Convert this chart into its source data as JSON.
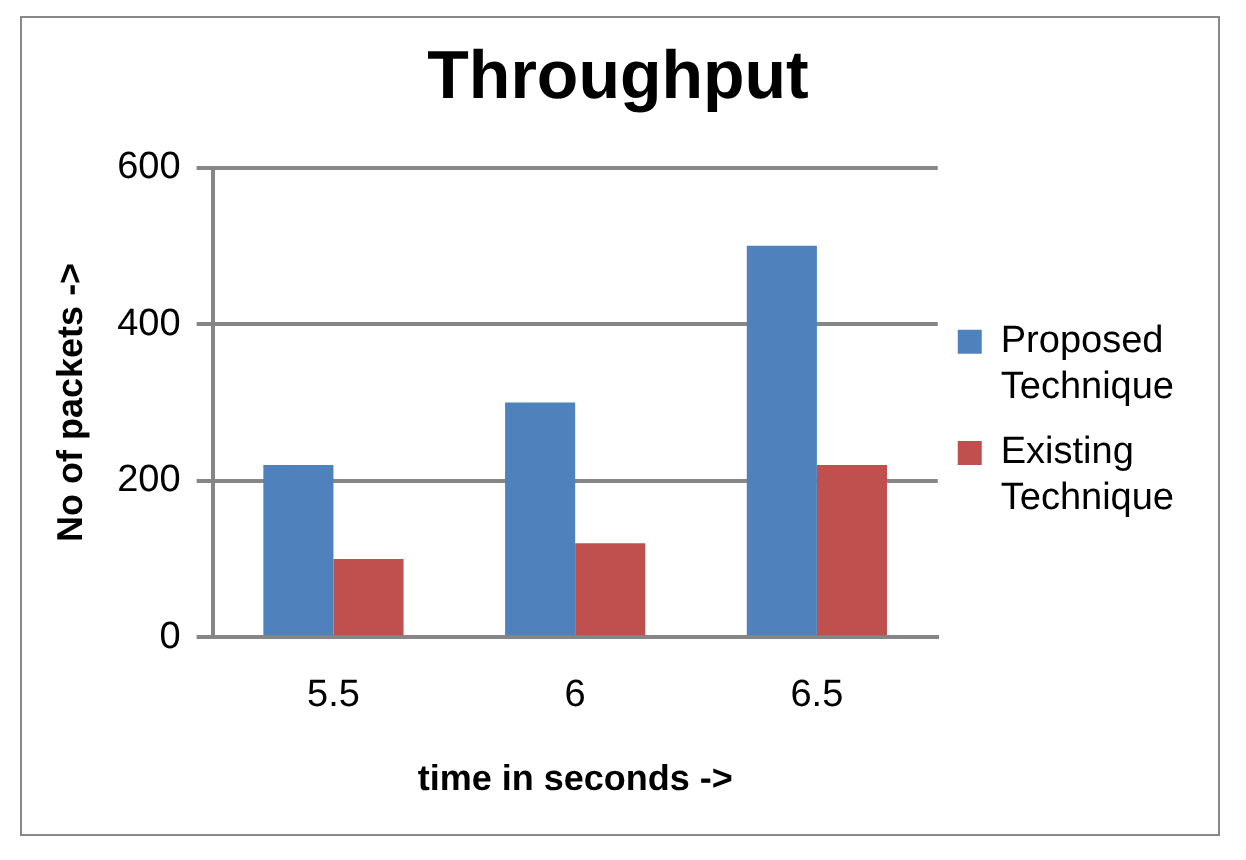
{
  "chart_data": {
    "type": "bar",
    "title": "Throughput",
    "xlabel": "time in seconds ->",
    "ylabel": "No of packets ->",
    "categories": [
      "5.5",
      "6",
      "6.5"
    ],
    "series": [
      {
        "name": "Proposed Technique",
        "color": "#4f81bd",
        "values": [
          220,
          300,
          500
        ]
      },
      {
        "name": "Existing Technique",
        "color": "#c0504d",
        "values": [
          100,
          120,
          220
        ]
      }
    ],
    "ylim": [
      0,
      600
    ],
    "yticks": [
      0,
      200,
      400,
      600
    ],
    "grid": "y",
    "legend": "right"
  }
}
